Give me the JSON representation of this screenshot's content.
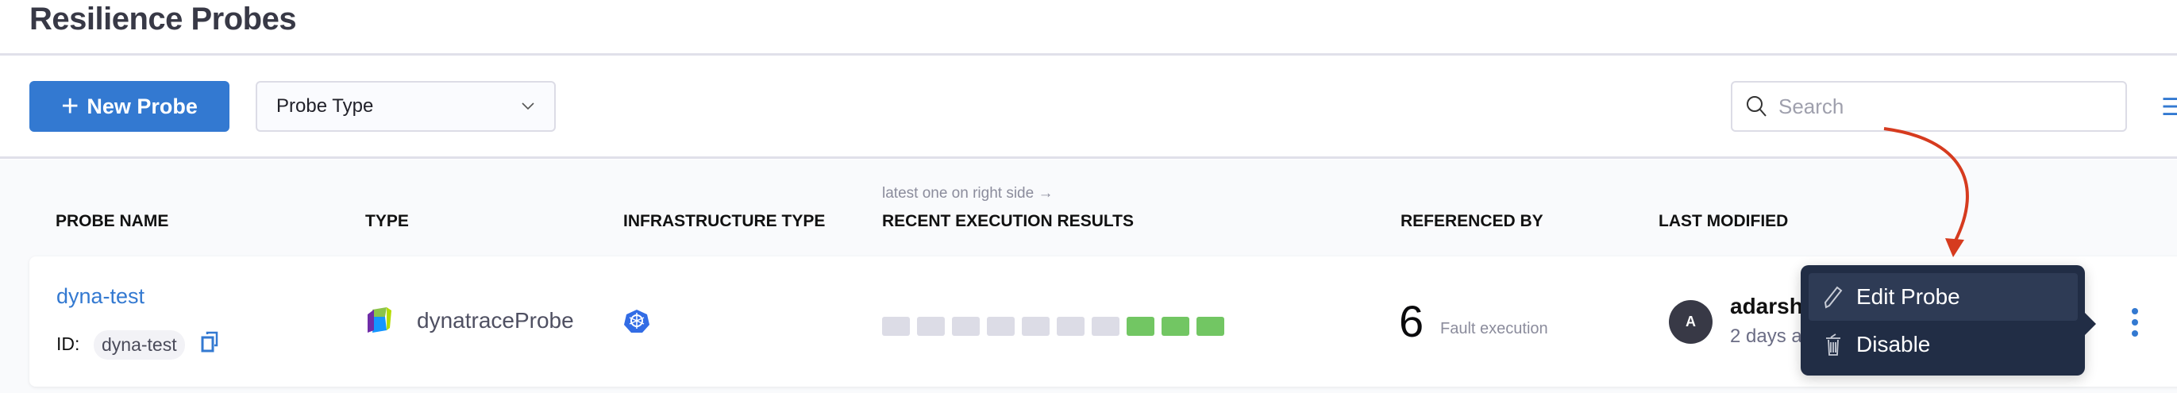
{
  "page": {
    "title": "Resilience Probes"
  },
  "toolbar": {
    "new_probe_label": "New Probe",
    "probe_type_placeholder": "Probe Type",
    "search_placeholder": "Search"
  },
  "table": {
    "execution_hint": "latest one on right side →",
    "columns": [
      "PROBE NAME",
      "TYPE",
      "INFRASTRUCTURE TYPE",
      "RECENT EXECUTION RESULTS",
      "REFERENCED BY",
      "LAST MODIFIED"
    ],
    "rows": [
      {
        "name": "dyna-test",
        "id_label": "ID:",
        "id": "dyna-test",
        "type": "dynatraceProbe",
        "infrastructure_icon": "kubernetes-icon",
        "recent_results": [
          "none",
          "none",
          "none",
          "none",
          "none",
          "none",
          "none",
          "success",
          "success",
          "success"
        ],
        "referenced_count": "6",
        "referenced_label": "Fault execution",
        "avatar_initial": "A",
        "modified_by": "adarsh",
        "modified_time": "2 days a"
      }
    ]
  },
  "context_menu": {
    "items": [
      {
        "label": "Edit Probe",
        "icon": "pencil-icon"
      },
      {
        "label": "Disable",
        "icon": "trash-icon"
      }
    ]
  },
  "colors": {
    "accent": "#3379d1",
    "success": "#72c663",
    "none": "#dcdce6",
    "menu_bg": "#212d45",
    "annotation_arrow": "#d63b1f"
  }
}
